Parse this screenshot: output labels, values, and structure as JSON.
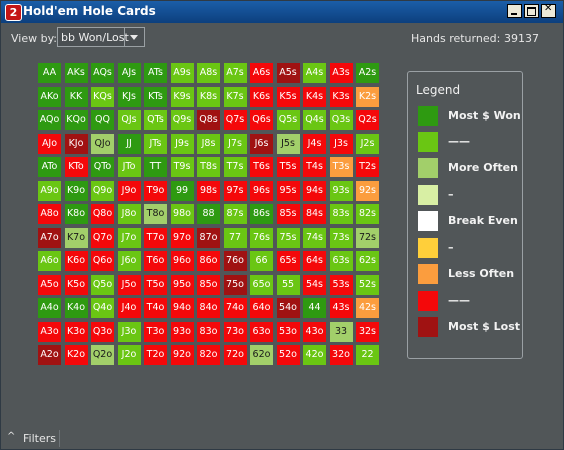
{
  "window": {
    "title": "Hold'em Hole Cards",
    "app_icon_glyph": "2"
  },
  "toolbar": {
    "view_by_label": "View by:",
    "view_by_value": "bb Won/Lost",
    "hands_label": "Hands returned:",
    "hands_value": "39137"
  },
  "colors": {
    "G": "#2e9a11",
    "L": "#6ac613",
    "M": "#a2cf6a",
    "P": "#d8efa4",
    "W": "#ffffff",
    "Y": "#ffcf3a",
    "O": "#fb9d3e",
    "R": "#f4080a",
    "D": "#a01212"
  },
  "grid": {
    "rows": [
      [
        [
          "AA",
          "G"
        ],
        [
          "AKs",
          "G"
        ],
        [
          "AQs",
          "G"
        ],
        [
          "AJs",
          "G"
        ],
        [
          "ATs",
          "G"
        ],
        [
          "A9s",
          "L"
        ],
        [
          "A8s",
          "L"
        ],
        [
          "A7s",
          "L"
        ],
        [
          "A6s",
          "R"
        ],
        [
          "A5s",
          "D"
        ],
        [
          "A4s",
          "L"
        ],
        [
          "A3s",
          "R"
        ],
        [
          "A2s",
          "G"
        ]
      ],
      [
        [
          "AKo",
          "G"
        ],
        [
          "KK",
          "G"
        ],
        [
          "KQs",
          "L"
        ],
        [
          "KJs",
          "G"
        ],
        [
          "KTs",
          "G"
        ],
        [
          "K9s",
          "L"
        ],
        [
          "K8s",
          "L"
        ],
        [
          "K7s",
          "L"
        ],
        [
          "K6s",
          "R"
        ],
        [
          "K5s",
          "R"
        ],
        [
          "K4s",
          "R"
        ],
        [
          "K3s",
          "R"
        ],
        [
          "K2s",
          "O"
        ]
      ],
      [
        [
          "AQo",
          "G"
        ],
        [
          "KQo",
          "G"
        ],
        [
          "QQ",
          "G"
        ],
        [
          "QJs",
          "L"
        ],
        [
          "QTs",
          "L"
        ],
        [
          "Q9s",
          "L"
        ],
        [
          "Q8s",
          "D"
        ],
        [
          "Q7s",
          "R"
        ],
        [
          "Q6s",
          "R"
        ],
        [
          "Q5s",
          "L"
        ],
        [
          "Q4s",
          "L"
        ],
        [
          "Q3s",
          "L"
        ],
        [
          "Q2s",
          "R"
        ]
      ],
      [
        [
          "AJo",
          "R"
        ],
        [
          "KJo",
          "D"
        ],
        [
          "QJo",
          "M"
        ],
        [
          "JJ",
          "G"
        ],
        [
          "JTs",
          "L"
        ],
        [
          "J9s",
          "L"
        ],
        [
          "J8s",
          "L"
        ],
        [
          "J7s",
          "L"
        ],
        [
          "J6s",
          "D"
        ],
        [
          "J5s",
          "M"
        ],
        [
          "J4s",
          "R"
        ],
        [
          "J3s",
          "R"
        ],
        [
          "J2s",
          "L"
        ]
      ],
      [
        [
          "ATo",
          "G"
        ],
        [
          "KTo",
          "R"
        ],
        [
          "QTo",
          "G"
        ],
        [
          "JTo",
          "L"
        ],
        [
          "TT",
          "G"
        ],
        [
          "T9s",
          "L"
        ],
        [
          "T8s",
          "L"
        ],
        [
          "T7s",
          "L"
        ],
        [
          "T6s",
          "R"
        ],
        [
          "T5s",
          "R"
        ],
        [
          "T4s",
          "R"
        ],
        [
          "T3s",
          "O"
        ],
        [
          "T2s",
          "R"
        ]
      ],
      [
        [
          "A9o",
          "L"
        ],
        [
          "K9o",
          "G"
        ],
        [
          "Q9o",
          "L"
        ],
        [
          "J9o",
          "R"
        ],
        [
          "T9o",
          "R"
        ],
        [
          "99",
          "G"
        ],
        [
          "98s",
          "R"
        ],
        [
          "97s",
          "R"
        ],
        [
          "96s",
          "R"
        ],
        [
          "95s",
          "R"
        ],
        [
          "94s",
          "R"
        ],
        [
          "93s",
          "L"
        ],
        [
          "92s",
          "O"
        ]
      ],
      [
        [
          "A8o",
          "R"
        ],
        [
          "K8o",
          "G"
        ],
        [
          "Q8o",
          "R"
        ],
        [
          "J8o",
          "L"
        ],
        [
          "T8o",
          "M"
        ],
        [
          "98o",
          "L"
        ],
        [
          "88",
          "G"
        ],
        [
          "87s",
          "L"
        ],
        [
          "86s",
          "G"
        ],
        [
          "85s",
          "R"
        ],
        [
          "84s",
          "R"
        ],
        [
          "83s",
          "L"
        ],
        [
          "82s",
          "L"
        ]
      ],
      [
        [
          "A7o",
          "D"
        ],
        [
          "K7o",
          "M"
        ],
        [
          "Q7o",
          "R"
        ],
        [
          "J7o",
          "L"
        ],
        [
          "T7o",
          "R"
        ],
        [
          "97o",
          "R"
        ],
        [
          "87o",
          "D"
        ],
        [
          "77",
          "L"
        ],
        [
          "76s",
          "L"
        ],
        [
          "75s",
          "L"
        ],
        [
          "74s",
          "L"
        ],
        [
          "73s",
          "L"
        ],
        [
          "72s",
          "M"
        ]
      ],
      [
        [
          "A6o",
          "L"
        ],
        [
          "K6o",
          "R"
        ],
        [
          "Q6o",
          "R"
        ],
        [
          "J6o",
          "L"
        ],
        [
          "T6o",
          "R"
        ],
        [
          "96o",
          "R"
        ],
        [
          "86o",
          "R"
        ],
        [
          "76o",
          "D"
        ],
        [
          "66",
          "L"
        ],
        [
          "65s",
          "R"
        ],
        [
          "64s",
          "R"
        ],
        [
          "63s",
          "L"
        ],
        [
          "62s",
          "L"
        ]
      ],
      [
        [
          "A5o",
          "R"
        ],
        [
          "K5o",
          "R"
        ],
        [
          "Q5o",
          "L"
        ],
        [
          "J5o",
          "R"
        ],
        [
          "T5o",
          "R"
        ],
        [
          "95o",
          "R"
        ],
        [
          "85o",
          "R"
        ],
        [
          "75o",
          "D"
        ],
        [
          "65o",
          "L"
        ],
        [
          "55",
          "L"
        ],
        [
          "54s",
          "R"
        ],
        [
          "53s",
          "R"
        ],
        [
          "52s",
          "L"
        ]
      ],
      [
        [
          "A4o",
          "G"
        ],
        [
          "K4o",
          "G"
        ],
        [
          "Q4o",
          "L"
        ],
        [
          "J4o",
          "R"
        ],
        [
          "T4o",
          "R"
        ],
        [
          "94o",
          "R"
        ],
        [
          "84o",
          "R"
        ],
        [
          "74o",
          "R"
        ],
        [
          "64o",
          "R"
        ],
        [
          "54o",
          "D"
        ],
        [
          "44",
          "G"
        ],
        [
          "43s",
          "R"
        ],
        [
          "42s",
          "O"
        ]
      ],
      [
        [
          "A3o",
          "R"
        ],
        [
          "K3o",
          "R"
        ],
        [
          "Q3o",
          "R"
        ],
        [
          "J3o",
          "L"
        ],
        [
          "T3o",
          "R"
        ],
        [
          "93o",
          "R"
        ],
        [
          "83o",
          "R"
        ],
        [
          "73o",
          "R"
        ],
        [
          "63o",
          "R"
        ],
        [
          "53o",
          "R"
        ],
        [
          "43o",
          "R"
        ],
        [
          "33",
          "M"
        ],
        [
          "32s",
          "R"
        ]
      ],
      [
        [
          "A2o",
          "D"
        ],
        [
          "K2o",
          "R"
        ],
        [
          "Q2o",
          "M"
        ],
        [
          "J2o",
          "L"
        ],
        [
          "T2o",
          "R"
        ],
        [
          "92o",
          "R"
        ],
        [
          "82o",
          "R"
        ],
        [
          "72o",
          "R"
        ],
        [
          "62o",
          "M"
        ],
        [
          "52o",
          "R"
        ],
        [
          "42o",
          "L"
        ],
        [
          "32o",
          "R"
        ],
        [
          "22",
          "L"
        ]
      ]
    ]
  },
  "legend": {
    "title": "Legend",
    "items": [
      {
        "label": "Most $ Won",
        "color": "#2e9a11"
      },
      {
        "label": "——",
        "color": "#6ac613"
      },
      {
        "label": "More Often",
        "color": "#a2cf6a"
      },
      {
        "label": "–",
        "color": "#d8efa4"
      },
      {
        "label": "Break Even",
        "color": "#ffffff"
      },
      {
        "label": "–",
        "color": "#ffcf3a"
      },
      {
        "label": "Less Often",
        "color": "#fb9d3e"
      },
      {
        "label": "——",
        "color": "#f4080a"
      },
      {
        "label": "Most $ Lost",
        "color": "#a01212"
      }
    ]
  },
  "footer": {
    "filters_label": "Filters",
    "caret_glyph": "^"
  }
}
